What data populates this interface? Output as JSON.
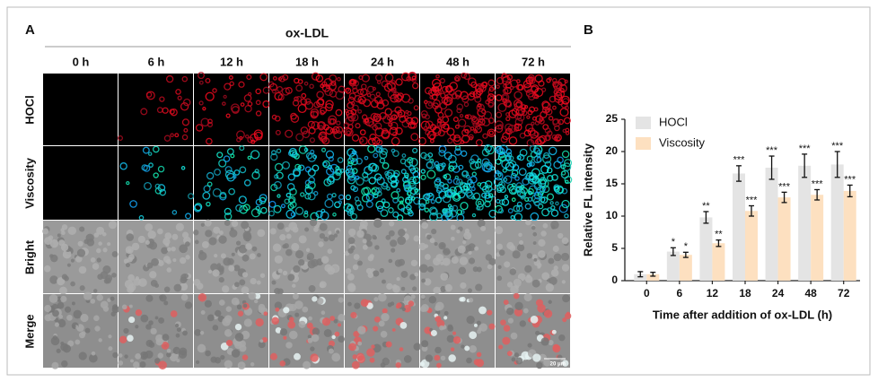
{
  "panel_a": {
    "label": "A",
    "group_label": "ox-LDL",
    "columns": [
      "0 h",
      "6 h",
      "12 h",
      "18 h",
      "24 h",
      "48 h",
      "72 h"
    ],
    "rows": [
      "HOCl",
      "Viscosity",
      "Bright",
      "Merge"
    ],
    "scale_bar": "20 μm"
  },
  "panel_b_label": "B",
  "chart_data": {
    "type": "bar",
    "xlabel": "Time after addition of ox-LDL (h)",
    "ylabel": "Relative FL intensity",
    "categories": [
      "0",
      "6",
      "12",
      "18",
      "24",
      "48",
      "72"
    ],
    "series": [
      {
        "name": "HOCl",
        "color": "#e4e4e4",
        "values": [
          1.0,
          4.5,
          9.8,
          16.6,
          17.5,
          17.8,
          18.0
        ],
        "errors": [
          0.4,
          0.6,
          0.9,
          1.2,
          1.8,
          1.8,
          2.0
        ],
        "labels": [
          null,
          "*",
          "**",
          "***",
          "***",
          "***",
          "***"
        ]
      },
      {
        "name": "Viscosity",
        "color": "#fde0c0",
        "values": [
          1.0,
          4.0,
          5.8,
          10.8,
          12.9,
          13.3,
          13.9
        ],
        "errors": [
          0.3,
          0.4,
          0.5,
          0.8,
          0.8,
          0.8,
          0.9
        ],
        "labels": [
          null,
          "*",
          "**",
          "***",
          "***",
          "***",
          "***"
        ]
      }
    ],
    "ylim": [
      0,
      25
    ],
    "yticks": [
      0,
      5,
      10,
      15,
      20,
      25
    ],
    "legend": "top-left",
    "grid": false
  }
}
